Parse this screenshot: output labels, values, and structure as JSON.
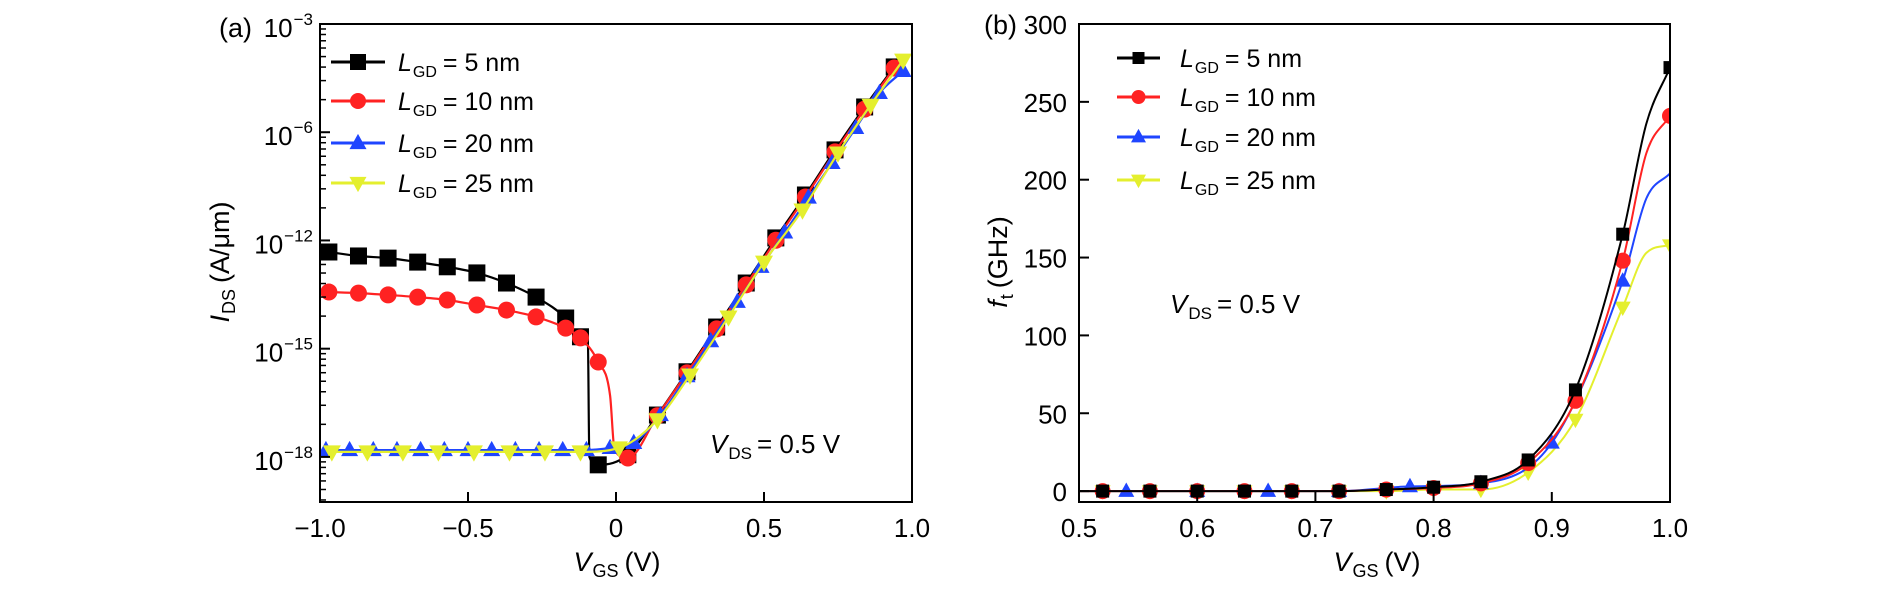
{
  "figure_background": "#ffffff",
  "chart_data": [
    {
      "panel_label": "(a)",
      "type": "line",
      "title": "",
      "xlabel": {
        "symbol": "V",
        "subscript": "GS",
        "unit": "(V)"
      },
      "ylabel": {
        "symbol": "I",
        "subscript": "DS",
        "unit": "(A/μm)"
      },
      "xscale": "linear",
      "xlim": [
        -1.0,
        1.0
      ],
      "xticks": [
        -1.0,
        -0.5,
        0,
        0.5,
        1.0
      ],
      "xtick_labels": [
        "−1.0",
        "−0.5",
        "0",
        "0.5",
        "1.0"
      ],
      "yscale": "log",
      "ylim_log10": [
        -19.25,
        -3
      ],
      "yticks_log10": [
        -3,
        -6,
        -12,
        -15,
        -18
      ],
      "ytick_labels": [
        {
          "base": "10",
          "exp": "−3"
        },
        {
          "base": "10",
          "exp": "−6"
        },
        {
          "base": "10",
          "exp": "−12"
        },
        {
          "base": "10",
          "exp": "−15"
        },
        {
          "base": "10",
          "exp": "−18"
        }
      ],
      "annotation": {
        "symbol": "V",
        "subscript": "DS",
        "text": "= 0.5 V"
      },
      "legend_position": "top-left",
      "grid": false,
      "series": [
        {
          "id": "lgd-5nm",
          "name": "L_GD = 5 nm",
          "label": {
            "symbol": "L",
            "subscript": "GD",
            "text": "= 5 nm"
          },
          "color": "#000000",
          "marker": "square",
          "x": [
            -0.97,
            -0.87,
            -0.77,
            -0.67,
            -0.57,
            -0.47,
            -0.37,
            -0.27,
            -0.17,
            -0.12,
            -0.06,
            0.04,
            0.14,
            0.24,
            0.34,
            0.44,
            0.54,
            0.64,
            0.74,
            0.84,
            0.94
          ],
          "y_log10": [
            -12.32,
            -12.43,
            -12.49,
            -12.6,
            -12.73,
            -12.9,
            -13.18,
            -13.57,
            -14.15,
            -14.67,
            -18.22,
            -17.94,
            -16.84,
            -15.64,
            -14.4,
            -13.18,
            -11.86,
            -9.48,
            -6.98,
            -5.3,
            -4.19
          ],
          "curve_x": [
            -0.97,
            -0.87,
            -0.77,
            -0.67,
            -0.57,
            -0.47,
            -0.37,
            -0.27,
            -0.17,
            -0.12,
            -0.095,
            -0.09,
            -0.06,
            0.04,
            0.14,
            0.24,
            0.34,
            0.44,
            0.54,
            0.64,
            0.74,
            0.84,
            0.94
          ],
          "curve_y_log10": [
            -12.32,
            -12.43,
            -12.49,
            -12.6,
            -12.73,
            -12.9,
            -13.18,
            -13.57,
            -14.15,
            -14.67,
            -14.85,
            -18.0,
            -18.22,
            -17.94,
            -16.84,
            -15.64,
            -14.4,
            -13.18,
            -11.86,
            -9.48,
            -6.98,
            -5.3,
            -4.19
          ]
        },
        {
          "id": "lgd-10nm",
          "name": "L_GD = 10 nm",
          "label": {
            "symbol": "L",
            "subscript": "GD",
            "text": "= 10 nm"
          },
          "color": "#ff2222",
          "marker": "circle",
          "x": [
            -0.97,
            -0.87,
            -0.77,
            -0.67,
            -0.57,
            -0.47,
            -0.37,
            -0.27,
            -0.17,
            -0.12,
            -0.06,
            0.04,
            0.14,
            0.24,
            0.34,
            0.44,
            0.54,
            0.64,
            0.74,
            0.84,
            0.94
          ],
          "y_log10": [
            -13.43,
            -13.46,
            -13.51,
            -13.57,
            -13.65,
            -13.79,
            -13.93,
            -14.12,
            -14.43,
            -14.7,
            -15.37,
            -18.03,
            -16.86,
            -15.67,
            -14.45,
            -13.23,
            -11.99,
            -9.59,
            -7.09,
            -5.36,
            -4.22
          ],
          "curve_x": [
            -0.97,
            -0.87,
            -0.77,
            -0.67,
            -0.57,
            -0.47,
            -0.37,
            -0.27,
            -0.17,
            -0.12,
            -0.06,
            -0.02,
            -0.005,
            0.04,
            0.14,
            0.24,
            0.34,
            0.44,
            0.54,
            0.64,
            0.74,
            0.84,
            0.94
          ],
          "curve_y_log10": [
            -13.43,
            -13.46,
            -13.51,
            -13.57,
            -13.65,
            -13.79,
            -13.93,
            -14.12,
            -14.43,
            -14.7,
            -15.37,
            -16.3,
            -17.8,
            -18.03,
            -16.86,
            -15.67,
            -14.45,
            -13.23,
            -11.99,
            -9.59,
            -7.09,
            -5.36,
            -4.22
          ]
        },
        {
          "id": "lgd-20nm",
          "name": "L_GD = 20 nm",
          "label": {
            "symbol": "L",
            "subscript": "GD",
            "text": "= 20 nm"
          },
          "color": "#1f45ff",
          "marker": "triangle-up",
          "x": [
            -0.98,
            -0.9,
            -0.82,
            -0.74,
            -0.66,
            -0.58,
            -0.5,
            -0.42,
            -0.34,
            -0.26,
            -0.18,
            -0.1,
            -0.02,
            0.06,
            0.15,
            0.24,
            0.32,
            0.41,
            0.49,
            0.57,
            0.65,
            0.73,
            0.81,
            0.89,
            0.97
          ],
          "y_log10": [
            -17.81,
            -17.81,
            -17.81,
            -17.81,
            -17.81,
            -17.81,
            -17.81,
            -17.81,
            -17.81,
            -17.81,
            -17.81,
            -17.81,
            -17.75,
            -17.61,
            -16.84,
            -15.76,
            -14.79,
            -13.7,
            -12.73,
            -11.55,
            -9.62,
            -7.7,
            -5.88,
            -4.91,
            -4.3
          ]
        },
        {
          "id": "lgd-25nm",
          "name": "L_GD = 25 nm",
          "label": {
            "symbol": "L",
            "subscript": "GD",
            "text": "= 25 nm"
          },
          "color": "#e4ef2e",
          "marker": "triangle-down",
          "x": [
            -0.96,
            -0.84,
            -0.72,
            -0.6,
            -0.48,
            -0.36,
            -0.24,
            -0.12,
            0.01,
            0.14,
            0.25,
            0.38,
            0.5,
            0.63,
            0.75,
            0.86,
            0.97
          ],
          "y_log10": [
            -17.86,
            -17.86,
            -17.86,
            -17.86,
            -17.86,
            -17.86,
            -17.86,
            -17.86,
            -17.75,
            -16.97,
            -15.73,
            -14.12,
            -12.6,
            -10.31,
            -7.15,
            -5.25,
            -4.0
          ]
        }
      ]
    },
    {
      "panel_label": "(b)",
      "type": "line",
      "title": "",
      "xlabel": {
        "symbol": "V",
        "subscript": "GS",
        "unit": "(V)"
      },
      "ylabel": {
        "symbol": "f",
        "subscript": "t",
        "unit": "(GHz)"
      },
      "xscale": "linear",
      "xlim": [
        0.5,
        1.0
      ],
      "xticks": [
        0.5,
        0.6,
        0.7,
        0.8,
        0.9,
        1.0
      ],
      "xtick_labels": [
        "0.5",
        "0.6",
        "0.7",
        "0.8",
        "0.9",
        "1.0"
      ],
      "yscale": "linear",
      "ylim": [
        -7,
        300
      ],
      "yticks": [
        0,
        50,
        100,
        150,
        200,
        250,
        300
      ],
      "ytick_labels": [
        "0",
        "50",
        "100",
        "150",
        "200",
        "250",
        "300"
      ],
      "annotation": {
        "symbol": "V",
        "subscript": "DS",
        "text": "= 0.5 V"
      },
      "legend_position": "top-left",
      "grid": false,
      "series": [
        {
          "id": "lgd-5nm",
          "name": "L_GD = 5 nm",
          "label": {
            "symbol": "L",
            "subscript": "GD",
            "text": "= 5 nm"
          },
          "color": "#000000",
          "marker": "square",
          "x": [
            0.52,
            0.56,
            0.6,
            0.64,
            0.68,
            0.72,
            0.76,
            0.8,
            0.84,
            0.88,
            0.92,
            0.96,
            1.0
          ],
          "y": [
            0,
            0,
            0,
            0,
            0,
            0,
            1,
            2.5,
            6,
            20,
            65,
            165,
            272
          ],
          "curve_x": [
            0.5,
            0.52,
            0.56,
            0.6,
            0.64,
            0.68,
            0.72,
            0.76,
            0.8,
            0.84,
            0.88,
            0.92,
            0.96,
            0.98,
            1.0
          ],
          "curve_y": [
            0,
            0,
            0,
            0,
            0,
            0,
            0,
            1,
            2.5,
            6,
            20,
            65,
            165,
            236,
            272
          ]
        },
        {
          "id": "lgd-10nm",
          "name": "L_GD = 10 nm",
          "label": {
            "symbol": "L",
            "subscript": "GD",
            "text": "= 10 nm"
          },
          "color": "#ff2222",
          "marker": "circle",
          "x": [
            0.52,
            0.56,
            0.6,
            0.64,
            0.68,
            0.72,
            0.76,
            0.8,
            0.84,
            0.88,
            0.92,
            0.96,
            1.0
          ],
          "y": [
            0,
            0,
            0,
            0,
            0,
            0,
            1,
            2,
            5,
            18,
            58,
            148,
            241
          ],
          "curve_x": [
            0.5,
            0.52,
            0.56,
            0.6,
            0.64,
            0.68,
            0.72,
            0.76,
            0.8,
            0.84,
            0.88,
            0.92,
            0.96,
            0.98,
            1.0
          ],
          "curve_y": [
            0,
            0,
            0,
            0,
            0,
            0,
            0,
            1,
            2,
            5,
            18,
            58,
            148,
            217,
            241
          ]
        },
        {
          "id": "lgd-20nm",
          "name": "L_GD = 20 nm",
          "label": {
            "symbol": "L",
            "subscript": "GD",
            "text": "= 20 nm"
          },
          "color": "#1f45ff",
          "marker": "triangle-up",
          "x": [
            0.54,
            0.6,
            0.66,
            0.72,
            0.78,
            0.84,
            0.9,
            0.96
          ],
          "y": [
            0,
            0,
            0,
            0,
            3,
            5,
            31,
            135
          ],
          "curve_x": [
            0.5,
            0.54,
            0.6,
            0.66,
            0.72,
            0.78,
            0.84,
            0.9,
            0.96,
            0.98,
            1.0
          ],
          "curve_y": [
            0,
            0,
            0,
            0,
            0,
            3,
            5,
            31,
            135,
            188,
            204
          ]
        },
        {
          "id": "lgd-25nm",
          "name": "L_GD = 25 nm",
          "label": {
            "symbol": "L",
            "subscript": "GD",
            "text": "= 25 nm"
          },
          "color": "#e4ef2e",
          "marker": "triangle-down",
          "x": [
            0.52,
            0.56,
            0.6,
            0.64,
            0.68,
            0.72,
            0.76,
            0.8,
            0.84,
            0.88,
            0.92,
            0.96,
            1.0
          ],
          "y": [
            0,
            0,
            0,
            0,
            0,
            0,
            0,
            1,
            1,
            12,
            46,
            118,
            158
          ],
          "curve_x": [
            0.5,
            0.52,
            0.56,
            0.6,
            0.64,
            0.68,
            0.72,
            0.76,
            0.8,
            0.84,
            0.88,
            0.92,
            0.96,
            0.98,
            1.0
          ],
          "curve_y": [
            0,
            0,
            0,
            0,
            0,
            0,
            0,
            0,
            1,
            1,
            12,
            46,
            118,
            153,
            158
          ]
        }
      ]
    }
  ]
}
